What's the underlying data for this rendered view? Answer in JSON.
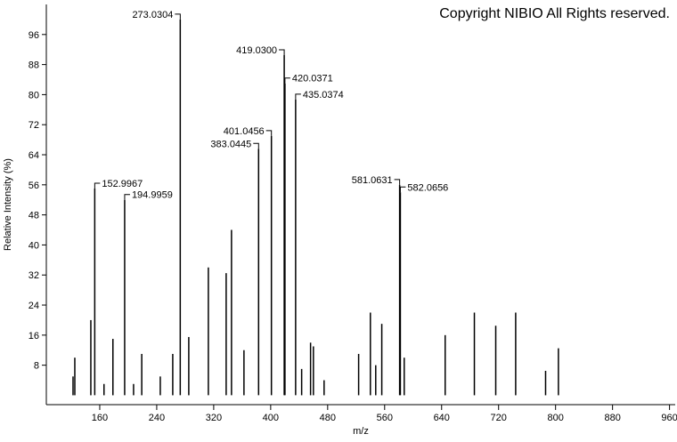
{
  "chart_data": {
    "type": "stick",
    "watermark": "Copyright NIBIO All Rights reserved.",
    "x_label": "m/z",
    "y_label": "Relative Intensity (%)",
    "xlim": [
      85,
      968
    ],
    "ylim": [
      -2.5,
      104
    ],
    "xticks": [
      160,
      240,
      320,
      400,
      480,
      560,
      640,
      720,
      800,
      880,
      960
    ],
    "yticks": [
      8,
      16,
      24,
      32,
      40,
      48,
      56,
      64,
      72,
      80,
      88,
      96
    ],
    "color": "#000000",
    "x": [
      122.5,
      125,
      147.5,
      152.9967,
      166,
      178.5,
      194.9959,
      207.5,
      219,
      245,
      262.5,
      273.0304,
      285,
      312.5,
      337.5,
      345,
      362.5,
      383.0445,
      401.0456,
      419.03,
      420.0371,
      435.0374,
      443.5,
      456,
      460,
      475,
      523.5,
      540,
      547.5,
      556,
      581.0631,
      582.0656,
      587.5,
      645,
      686,
      716,
      744,
      786,
      804
    ],
    "x_labels": [
      null,
      null,
      null,
      "152.9967",
      null,
      null,
      "194.9959",
      null,
      null,
      null,
      null,
      "273.0304",
      null,
      null,
      null,
      null,
      null,
      "383.0445",
      "401.0456",
      "419.0300",
      "420.0371",
      "435.0374",
      null,
      null,
      null,
      null,
      null,
      null,
      null,
      null,
      "581.0631",
      "582.0656",
      null,
      null,
      null,
      null,
      null,
      null,
      null
    ],
    "values": [
      5,
      10,
      20,
      55,
      3,
      15,
      52,
      3,
      11,
      5,
      11,
      100,
      15.5,
      34,
      32.5,
      44,
      12,
      65.6,
      69,
      90.5,
      83,
      78.7,
      7,
      14,
      13,
      4,
      11,
      22,
      8,
      19,
      56,
      54,
      10,
      16,
      22,
      18.5,
      22,
      6.5,
      12.5
    ]
  }
}
